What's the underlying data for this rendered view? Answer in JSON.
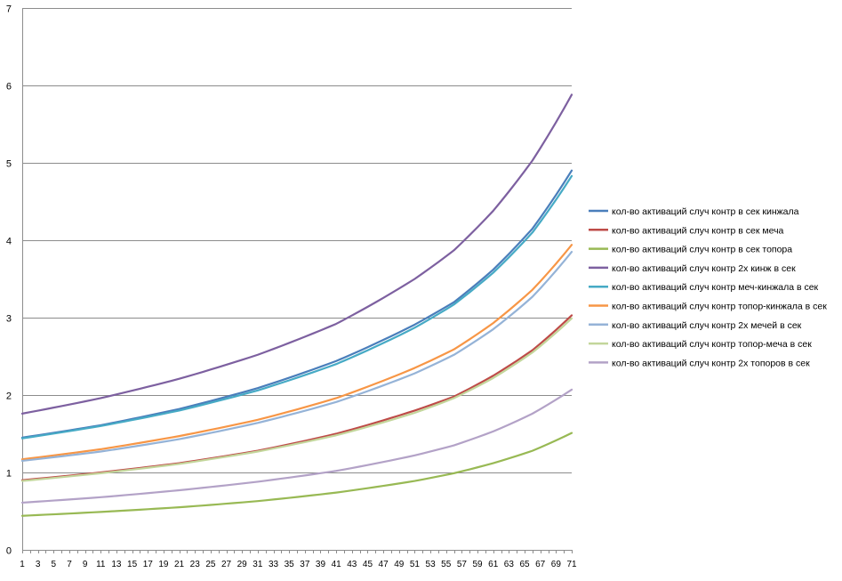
{
  "chart_data": {
    "type": "line",
    "title": "",
    "xlabel": "",
    "ylabel": "",
    "x_tick_labels": [
      "1",
      "3",
      "5",
      "7",
      "9",
      "11",
      "13",
      "15",
      "17",
      "19",
      "21",
      "23",
      "25",
      "27",
      "29",
      "31",
      "33",
      "35",
      "37",
      "39",
      "41",
      "43",
      "45",
      "47",
      "49",
      "51",
      "53",
      "55",
      "57",
      "59",
      "61",
      "63",
      "65",
      "67",
      "69",
      "71"
    ],
    "ylim": [
      0,
      7
    ],
    "y_ticks": [
      0,
      1,
      2,
      3,
      4,
      5,
      6,
      7
    ],
    "grid": true,
    "legend_position": "right",
    "x_start": 1,
    "x_end": 71,
    "series": [
      {
        "name": "кол-во активаций случ контр в сек кинжала",
        "color": "#4a7ebb",
        "points": [
          [
            1,
            1.45
          ],
          [
            11,
            1.61
          ],
          [
            21,
            1.82
          ],
          [
            31,
            2.09
          ],
          [
            41,
            2.44
          ],
          [
            51,
            2.91
          ],
          [
            56,
            3.2
          ],
          [
            61,
            3.62
          ],
          [
            66,
            4.15
          ],
          [
            71,
            4.9
          ]
        ]
      },
      {
        "name": "кол-во активаций случ контр в сек меча",
        "color": "#be4b48",
        "points": [
          [
            1,
            0.9
          ],
          [
            11,
            1.0
          ],
          [
            21,
            1.12
          ],
          [
            31,
            1.28
          ],
          [
            41,
            1.5
          ],
          [
            51,
            1.8
          ],
          [
            56,
            1.98
          ],
          [
            61,
            2.25
          ],
          [
            66,
            2.58
          ],
          [
            71,
            3.03
          ]
        ]
      },
      {
        "name": "кол-во активаций случ контр в сек топора",
        "color": "#98b954",
        "points": [
          [
            1,
            0.44
          ],
          [
            11,
            0.49
          ],
          [
            21,
            0.55
          ],
          [
            31,
            0.63
          ],
          [
            41,
            0.74
          ],
          [
            51,
            0.89
          ],
          [
            56,
            0.99
          ],
          [
            61,
            1.12
          ],
          [
            66,
            1.28
          ],
          [
            71,
            1.51
          ]
        ]
      },
      {
        "name": "кол-во активаций случ контр 2х кинж в сек",
        "color": "#7d60a0",
        "points": [
          [
            1,
            1.76
          ],
          [
            11,
            1.96
          ],
          [
            21,
            2.21
          ],
          [
            31,
            2.52
          ],
          [
            41,
            2.92
          ],
          [
            51,
            3.5
          ],
          [
            56,
            3.87
          ],
          [
            61,
            4.38
          ],
          [
            66,
            5.03
          ],
          [
            71,
            5.88
          ]
        ]
      },
      {
        "name": "кол-во активаций случ контр меч-кинжала в сек",
        "color": "#46aac5",
        "points": [
          [
            1,
            1.44
          ],
          [
            11,
            1.6
          ],
          [
            21,
            1.8
          ],
          [
            31,
            2.06
          ],
          [
            41,
            2.4
          ],
          [
            51,
            2.87
          ],
          [
            56,
            3.17
          ],
          [
            61,
            3.58
          ],
          [
            66,
            4.1
          ],
          [
            71,
            4.83
          ]
        ]
      },
      {
        "name": "кол-во активаций случ контр топор-кинжала в сек",
        "color": "#f79646",
        "points": [
          [
            1,
            1.17
          ],
          [
            11,
            1.3
          ],
          [
            21,
            1.47
          ],
          [
            31,
            1.68
          ],
          [
            41,
            1.96
          ],
          [
            51,
            2.35
          ],
          [
            56,
            2.59
          ],
          [
            61,
            2.93
          ],
          [
            66,
            3.36
          ],
          [
            71,
            3.94
          ]
        ]
      },
      {
        "name": "кол-во активаций случ контр 2х мечей в сек",
        "color": "#95b3d7",
        "points": [
          [
            1,
            1.15
          ],
          [
            11,
            1.27
          ],
          [
            21,
            1.43
          ],
          [
            31,
            1.64
          ],
          [
            41,
            1.91
          ],
          [
            51,
            2.28
          ],
          [
            56,
            2.52
          ],
          [
            61,
            2.85
          ],
          [
            66,
            3.27
          ],
          [
            71,
            3.85
          ]
        ]
      },
      {
        "name": "кол-во активаций случ контр топор-меча в сек",
        "color": "#c3d69b",
        "points": [
          [
            1,
            0.89
          ],
          [
            11,
            0.99
          ],
          [
            21,
            1.11
          ],
          [
            31,
            1.27
          ],
          [
            41,
            1.48
          ],
          [
            51,
            1.77
          ],
          [
            56,
            1.96
          ],
          [
            61,
            2.22
          ],
          [
            66,
            2.55
          ],
          [
            71,
            2.99
          ]
        ]
      },
      {
        "name": "кол-во активаций случ контр 2х топоров в сек",
        "color": "#b3a2c7",
        "points": [
          [
            1,
            0.61
          ],
          [
            11,
            0.68
          ],
          [
            21,
            0.77
          ],
          [
            31,
            0.88
          ],
          [
            41,
            1.02
          ],
          [
            51,
            1.22
          ],
          [
            56,
            1.35
          ],
          [
            61,
            1.53
          ],
          [
            66,
            1.76
          ],
          [
            71,
            2.07
          ]
        ]
      }
    ]
  }
}
